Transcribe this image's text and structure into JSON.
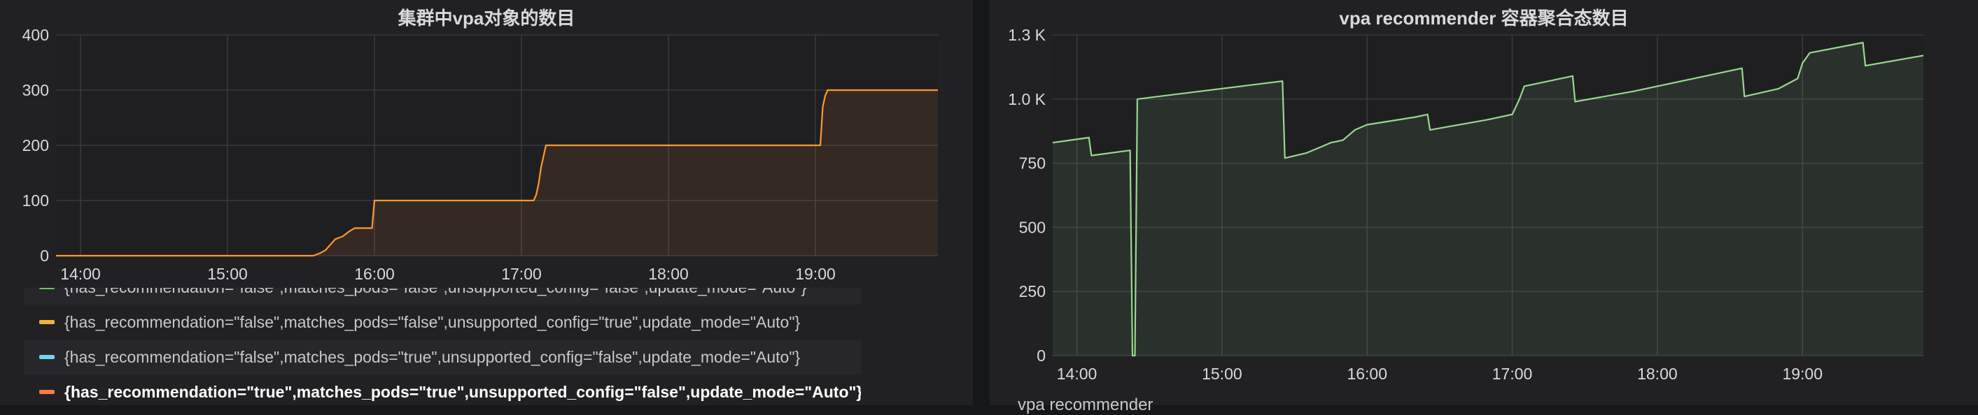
{
  "chart_data": [
    {
      "type": "area",
      "title": "集群中vpa对象的数目",
      "x_ticks": [
        "14:00",
        "15:00",
        "16:00",
        "17:00",
        "18:00",
        "19:00"
      ],
      "y_ticks": [
        "0",
        "100",
        "200",
        "300",
        "400"
      ],
      "ylim": [
        0,
        400
      ],
      "xlim": [
        "13:50",
        "19:50"
      ],
      "grid": true,
      "legend_placement": "bottom",
      "series": [
        {
          "color": "#ff9830",
          "points": [
            [
              "13:50",
              0
            ],
            [
              "14:25",
              0
            ],
            [
              "15:35",
              0
            ],
            [
              "15:38",
              5
            ],
            [
              "15:40",
              10
            ],
            [
              "15:42",
              20
            ],
            [
              "15:44",
              30
            ],
            [
              "15:47",
              35
            ],
            [
              "15:50",
              45
            ],
            [
              "15:52",
              50
            ],
            [
              "15:59",
              50
            ],
            [
              "16:00",
              100
            ],
            [
              "17:05",
              100
            ],
            [
              "17:06",
              110
            ],
            [
              "17:07",
              130
            ],
            [
              "17:08",
              160
            ],
            [
              "17:09",
              180
            ],
            [
              "17:10",
              200
            ],
            [
              "19:02",
              200
            ],
            [
              "19:03",
              270
            ],
            [
              "19:04",
              290
            ],
            [
              "19:05",
              300
            ],
            [
              "19:50",
              300
            ]
          ]
        }
      ],
      "legend": [
        {
          "label": "{has_recommendation=\"false\",matches_pods=\"false\",unsupported_config=\"false\",update_mode=\"Auto\"}",
          "color": "#73bf69"
        },
        {
          "label": "{has_recommendation=\"false\",matches_pods=\"false\",unsupported_config=\"true\",update_mode=\"Auto\"}",
          "color": "#f2b33d"
        },
        {
          "label": "{has_recommendation=\"false\",matches_pods=\"true\",unsupported_config=\"false\",update_mode=\"Auto\"}",
          "color": "#73d4ee"
        },
        {
          "label": "{has_recommendation=\"true\",matches_pods=\"true\",unsupported_config=\"false\",update_mode=\"Auto\"}",
          "color": "#ff7a45"
        }
      ]
    },
    {
      "type": "area",
      "title": "vpa recommender 容器聚合态数目",
      "x_ticks": [
        "14:00",
        "15:00",
        "16:00",
        "17:00",
        "18:00",
        "19:00"
      ],
      "y_ticks": [
        "0",
        "250",
        "500",
        "750",
        "1.0 K",
        "1.3 K"
      ],
      "ylim": [
        0,
        1250
      ],
      "xlim": [
        "13:50",
        "19:50"
      ],
      "grid": true,
      "series": [
        {
          "color": "#96d98d",
          "points": [
            [
              "13:50",
              830
            ],
            [
              "14:05",
              850
            ],
            [
              "14:06",
              780
            ],
            [
              "14:22",
              800
            ],
            [
              "14:23",
              0
            ],
            [
              "14:24",
              0
            ],
            [
              "14:25",
              1000
            ],
            [
              "15:25",
              1070
            ],
            [
              "15:26",
              770
            ],
            [
              "15:35",
              790
            ],
            [
              "15:40",
              810
            ],
            [
              "15:45",
              830
            ],
            [
              "15:50",
              840
            ],
            [
              "15:55",
              880
            ],
            [
              "16:00",
              900
            ],
            [
              "16:20",
              930
            ],
            [
              "16:25",
              940
            ],
            [
              "16:26",
              880
            ],
            [
              "16:50",
              920
            ],
            [
              "17:00",
              940
            ],
            [
              "17:03",
              1000
            ],
            [
              "17:05",
              1050
            ],
            [
              "17:25",
              1090
            ],
            [
              "17:26",
              990
            ],
            [
              "17:50",
              1030
            ],
            [
              "18:25",
              1100
            ],
            [
              "18:35",
              1120
            ],
            [
              "18:36",
              1010
            ],
            [
              "18:50",
              1040
            ],
            [
              "18:58",
              1080
            ],
            [
              "19:00",
              1140
            ],
            [
              "19:03",
              1180
            ],
            [
              "19:25",
              1220
            ],
            [
              "19:26",
              1130
            ],
            [
              "19:50",
              1170
            ]
          ]
        }
      ]
    }
  ],
  "truncated_text": "vpa recommender"
}
